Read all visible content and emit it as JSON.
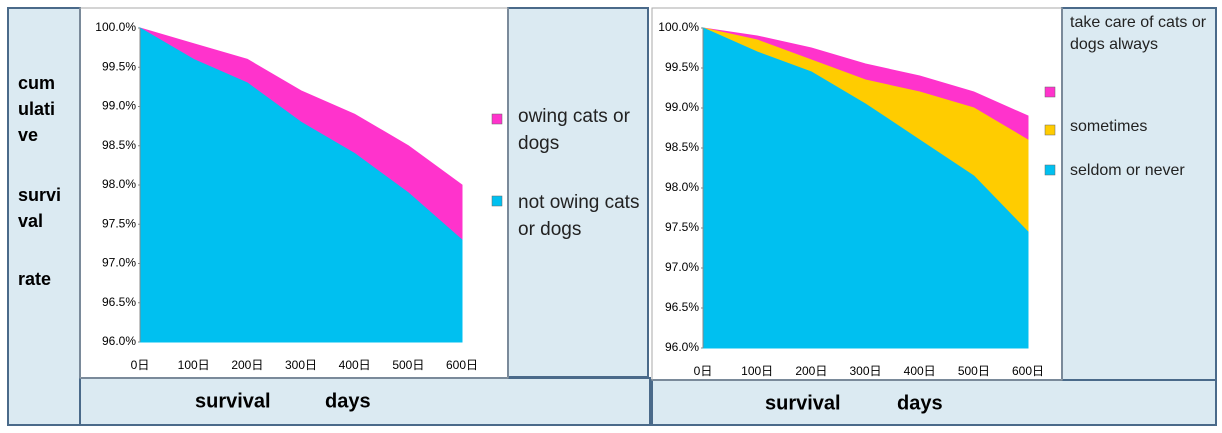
{
  "chart_data": [
    {
      "type": "area",
      "y_label": [
        "cum",
        "ulati",
        "ve",
        "survi",
        "val",
        "rate"
      ],
      "x_label": [
        "survival",
        "days"
      ],
      "categories": [
        "0日",
        "100日",
        "200日",
        "300日",
        "400日",
        "500日",
        "600日"
      ],
      "series": [
        {
          "name": "owing cats or dogs",
          "color": "#ff33cc",
          "values": [
            100,
            99.8,
            99.6,
            99.2,
            98.9,
            98.5,
            98.0
          ]
        },
        {
          "name": "not owing cats or dogs",
          "color": "#00c0f0",
          "values": [
            100,
            99.6,
            99.3,
            98.8,
            98.4,
            97.9,
            97.3
          ]
        }
      ],
      "ylim": [
        96,
        100
      ],
      "yticks": [
        {
          "value": 96,
          "label": "96.0%"
        },
        {
          "value": 96.5,
          "label": "96.5%"
        },
        {
          "value": 97,
          "label": "97.0%"
        },
        {
          "value": 97.5,
          "label": "97.5%"
        },
        {
          "value": 98,
          "label": "98.0%"
        },
        {
          "value": 98.5,
          "label": "98.5%"
        },
        {
          "value": 99,
          "label": "99.0%"
        },
        {
          "value": 99.5,
          "label": "99.5%"
        },
        {
          "value": 100,
          "label": "100.0%"
        }
      ]
    },
    {
      "type": "area",
      "x_label": [
        "survival",
        "days"
      ],
      "categories": [
        "0日",
        "100日",
        "200日",
        "300日",
        "400日",
        "500日",
        "600日"
      ],
      "series": [
        {
          "name": "take care of cats or dogs always",
          "color": "#ff33cc",
          "values": [
            100,
            99.9,
            99.75,
            99.55,
            99.4,
            99.2,
            98.9
          ]
        },
        {
          "name": "sometimes",
          "color": "#ffcc00",
          "values": [
            100,
            99.85,
            99.6,
            99.35,
            99.2,
            99.0,
            98.6
          ]
        },
        {
          "name": "seldom or never",
          "color": "#00c0f0",
          "values": [
            100,
            99.7,
            99.45,
            99.05,
            98.6,
            98.15,
            97.45
          ]
        }
      ],
      "ylim": [
        96,
        100
      ],
      "yticks": [
        {
          "value": 96,
          "label": "96.0%"
        },
        {
          "value": 96.5,
          "label": "96.5%"
        },
        {
          "value": 97,
          "label": "97.0%"
        },
        {
          "value": 97.5,
          "label": "97.5%"
        },
        {
          "value": 98,
          "label": "98.0%"
        },
        {
          "value": 98.5,
          "label": "98.5%"
        },
        {
          "value": 99,
          "label": "99.0%"
        },
        {
          "value": 99.5,
          "label": "99.5%"
        },
        {
          "value": 100,
          "label": "100.0%"
        }
      ]
    }
  ]
}
